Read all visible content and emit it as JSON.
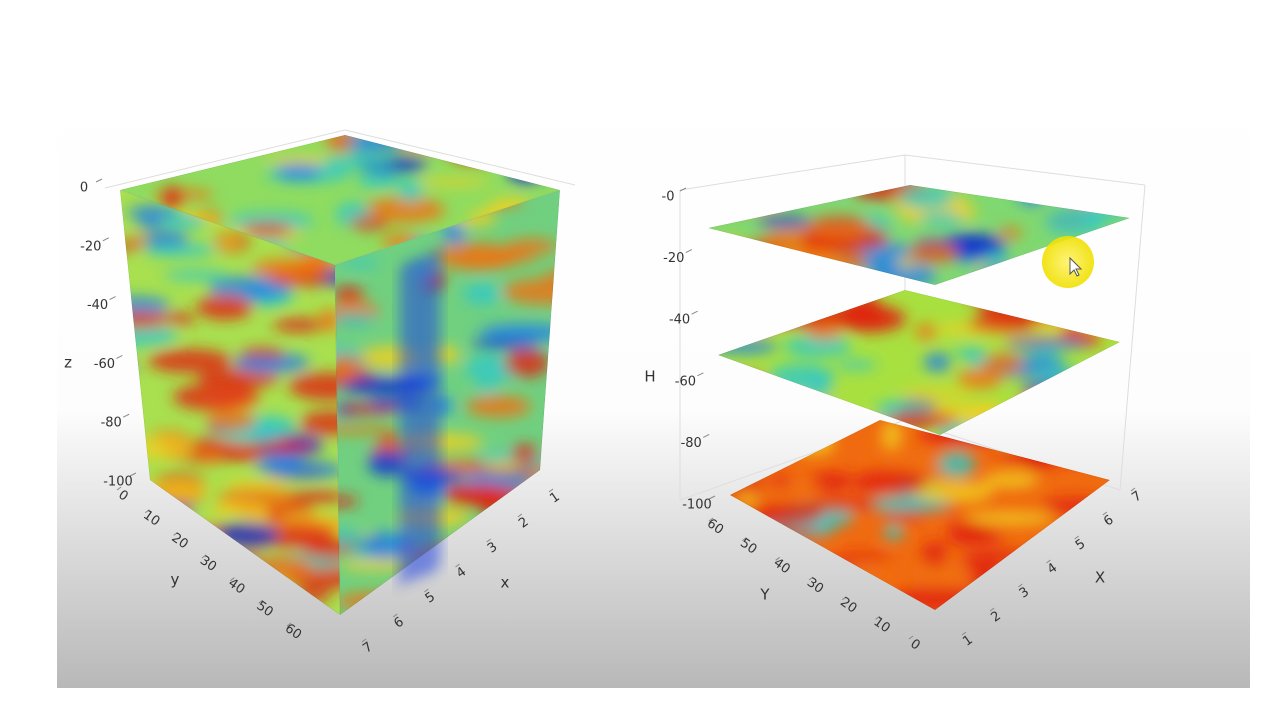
{
  "chart_data": [
    {
      "type": "volume3d",
      "xlabel": "x",
      "ylabel": "y",
      "zlabel": "z",
      "xlim": [
        1,
        7
      ],
      "xticks": [
        1,
        2,
        3,
        4,
        5,
        6,
        7
      ],
      "ylim": [
        0,
        60
      ],
      "yticks": [
        0,
        10,
        20,
        30,
        40,
        50,
        60
      ],
      "zlim": [
        -100,
        0
      ],
      "zticks": [
        0,
        -20,
        -40,
        -60,
        -80,
        -100
      ]
    },
    {
      "type": "slices3d",
      "xlabel": "X",
      "ylabel": "Y",
      "zlabel": "H",
      "xlim": [
        1,
        7
      ],
      "xticks": [
        1,
        2,
        3,
        4,
        5,
        6,
        7
      ],
      "ylim": [
        0,
        60
      ],
      "yticks": [
        60,
        50,
        40,
        30,
        20,
        10,
        0
      ],
      "zlim": [
        -100,
        0
      ],
      "zticks": [
        {
          "value": 0,
          "label": "-0"
        },
        -20,
        -40,
        -60,
        -80,
        -100
      ]
    }
  ]
}
